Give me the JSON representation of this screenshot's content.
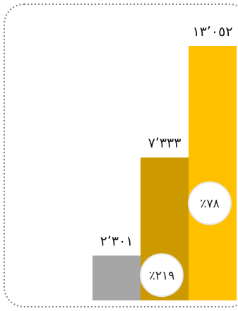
{
  "chart_data": {
    "type": "bar",
    "categories": [
      "",
      "",
      ""
    ],
    "values": [
      2301,
      7333,
      13052
    ],
    "value_labels": [
      "٢٬٣٠١",
      "٧٬٣٣٣",
      "١٣٬٠٥٢"
    ],
    "growth_labels": [
      "٪٢١٩",
      "٪٧٨"
    ],
    "bar_colors": [
      "#a6a6a6",
      "#cc9900",
      "#ffc000"
    ],
    "ylim": [
      0,
      13052
    ],
    "grid": false,
    "legend": "none",
    "title": "",
    "xlabel": "",
    "ylabel": ""
  }
}
